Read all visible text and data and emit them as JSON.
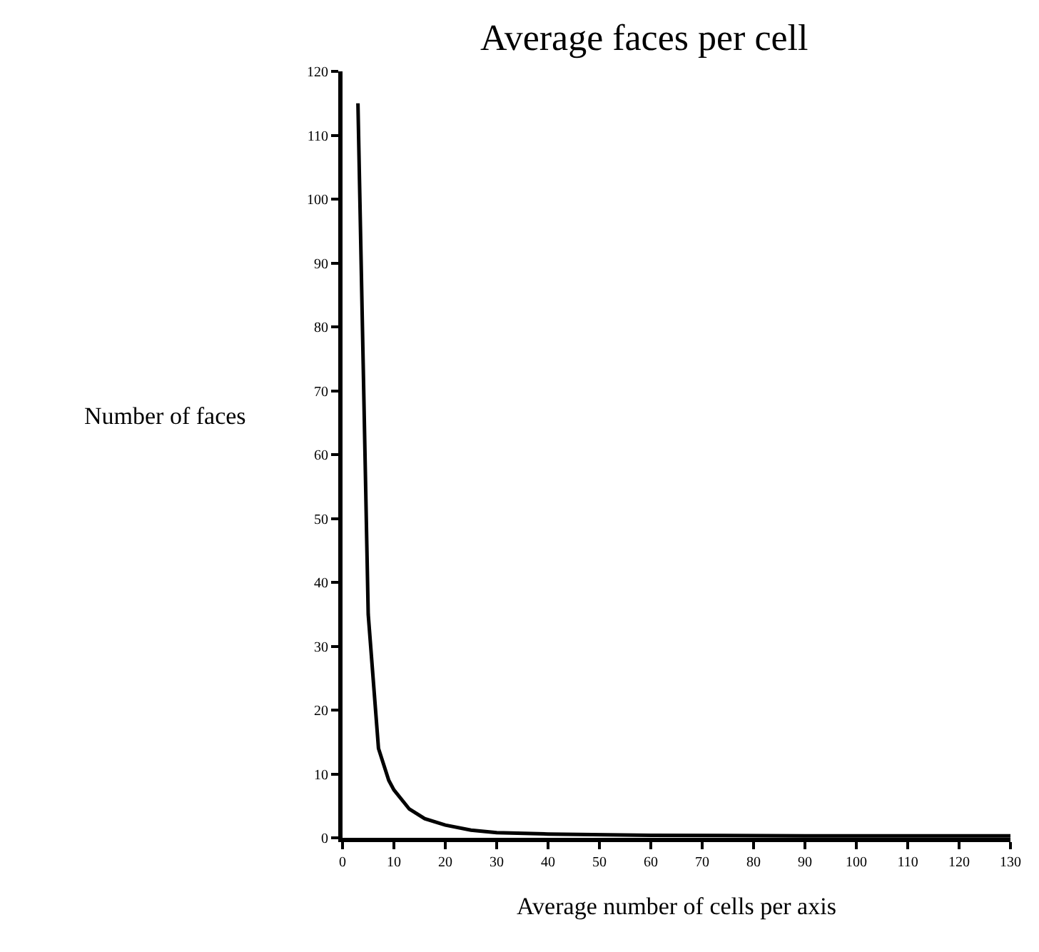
{
  "chart_data": {
    "type": "line",
    "title": "Average faces per cell",
    "xlabel": "Average number of cells per axis",
    "ylabel": "Number of faces",
    "x": [
      3,
      5,
      7,
      9,
      10,
      13,
      16,
      20,
      25,
      30,
      40,
      60,
      90,
      130
    ],
    "series": [
      {
        "color": "#000000",
        "values": [
          115,
          35,
          14,
          9,
          7.5,
          4.5,
          3,
          2,
          1.2,
          0.8,
          0.6,
          0.4,
          0.3,
          0.3
        ]
      }
    ],
    "xlim": [
      0,
      130
    ],
    "xticks": [
      0,
      10,
      20,
      30,
      40,
      50,
      60,
      70,
      80,
      90,
      100,
      110,
      120,
      130
    ],
    "ylim": [
      0,
      120
    ],
    "yticks": [
      0,
      10,
      20,
      30,
      40,
      50,
      60,
      70,
      80,
      90,
      100,
      110,
      120
    ],
    "legend": false,
    "marker": "none",
    "line_style": "solid"
  }
}
